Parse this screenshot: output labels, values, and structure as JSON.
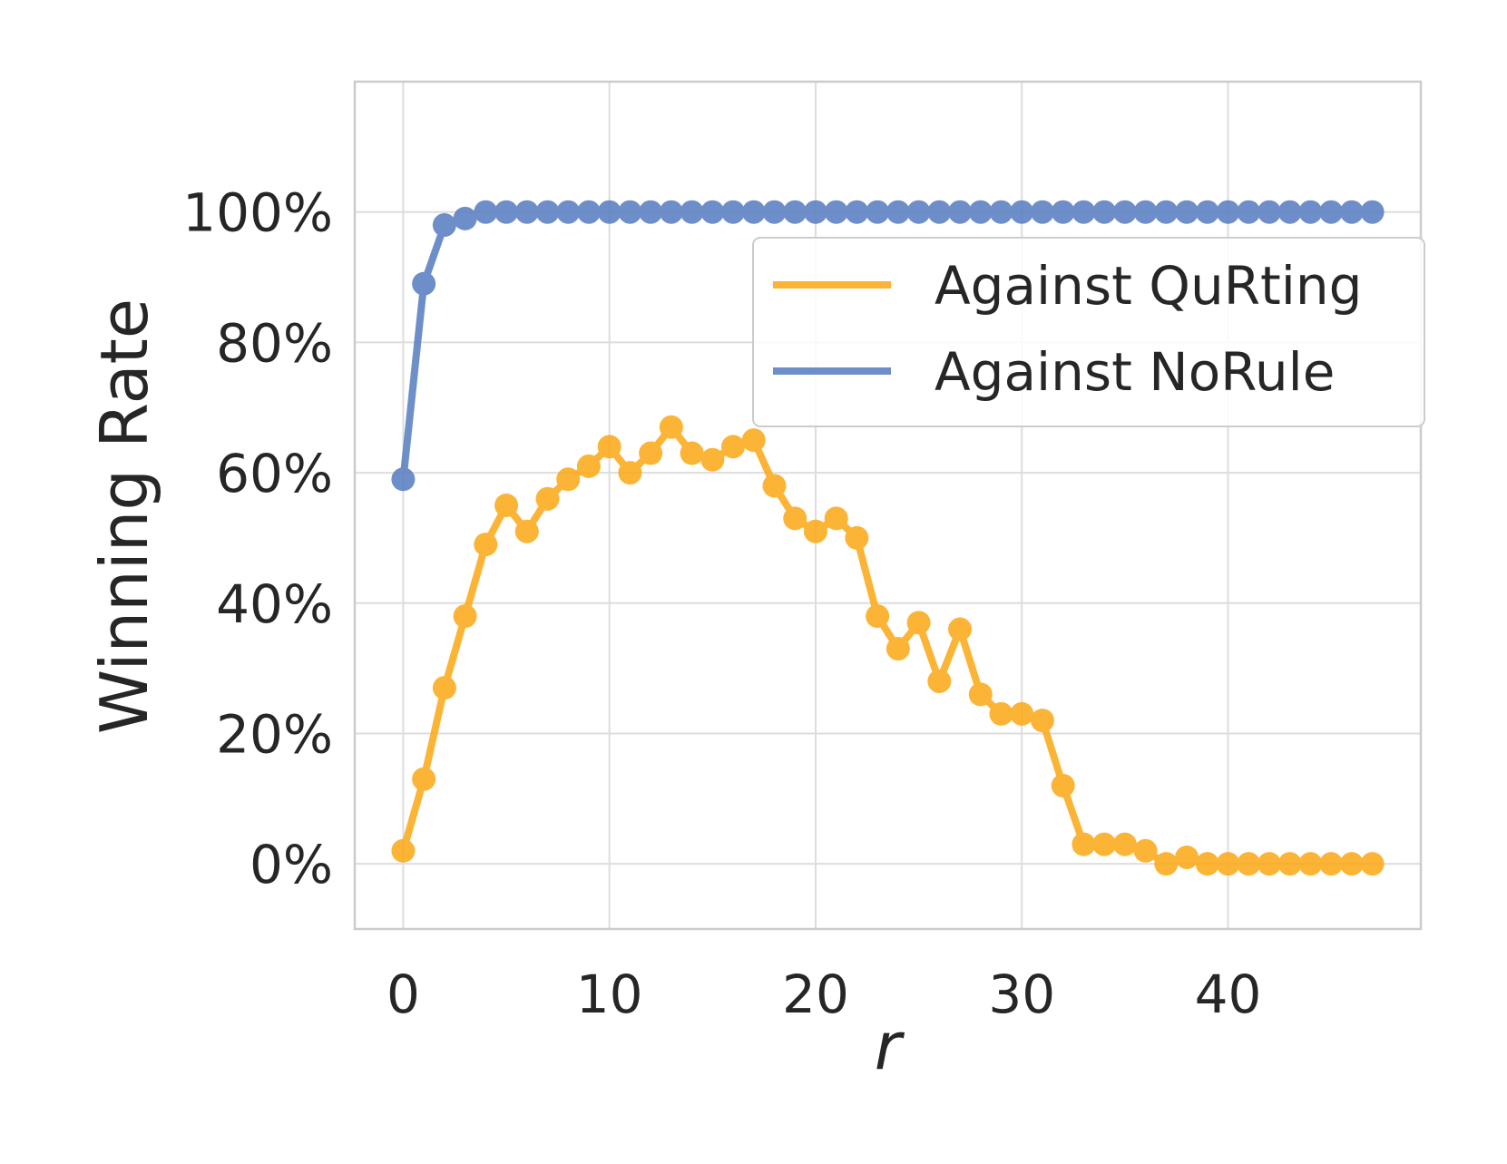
{
  "chart_data": {
    "type": "line",
    "xlabel": "r",
    "ylabel": "Winning Rate",
    "xlim": [
      -2.35,
      49.35
    ],
    "ylim": [
      -10,
      120
    ],
    "x_ticks": [
      0,
      10,
      20,
      30,
      40
    ],
    "y_ticks": [
      0,
      20,
      40,
      60,
      80,
      100
    ],
    "y_tick_labels": [
      "0%",
      "20%",
      "40%",
      "60%",
      "80%",
      "100%"
    ],
    "grid": true,
    "legend_position": "upper-right",
    "x": [
      0,
      1,
      2,
      3,
      4,
      5,
      6,
      7,
      8,
      9,
      10,
      11,
      12,
      13,
      14,
      15,
      16,
      17,
      18,
      19,
      20,
      21,
      22,
      23,
      24,
      25,
      26,
      27,
      28,
      29,
      30,
      31,
      32,
      33,
      34,
      35,
      36,
      37,
      38,
      39,
      40,
      41,
      42,
      43,
      44,
      45,
      46,
      47
    ],
    "series": [
      {
        "name": "Against QuRting",
        "color": "#fbaa1a",
        "values": [
          2,
          13,
          27,
          38,
          49,
          55,
          51,
          56,
          59,
          61,
          64,
          60,
          63,
          67,
          63,
          62,
          64,
          65,
          58,
          53,
          51,
          53,
          50,
          38,
          33,
          37,
          28,
          36,
          26,
          23,
          23,
          22,
          12,
          3,
          3,
          3,
          2,
          0,
          1,
          0,
          0,
          0,
          0,
          0,
          0,
          0,
          0,
          0
        ]
      },
      {
        "name": "Against NoRule",
        "color": "#5b7fc2",
        "values": [
          59,
          89,
          98,
          99,
          100,
          100,
          100,
          100,
          100,
          100,
          100,
          100,
          100,
          100,
          100,
          100,
          100,
          100,
          100,
          100,
          100,
          100,
          100,
          100,
          100,
          100,
          100,
          100,
          100,
          100,
          100,
          100,
          100,
          100,
          100,
          100,
          100,
          100,
          100,
          100,
          100,
          100,
          100,
          100,
          100,
          100,
          100,
          100
        ]
      }
    ]
  }
}
